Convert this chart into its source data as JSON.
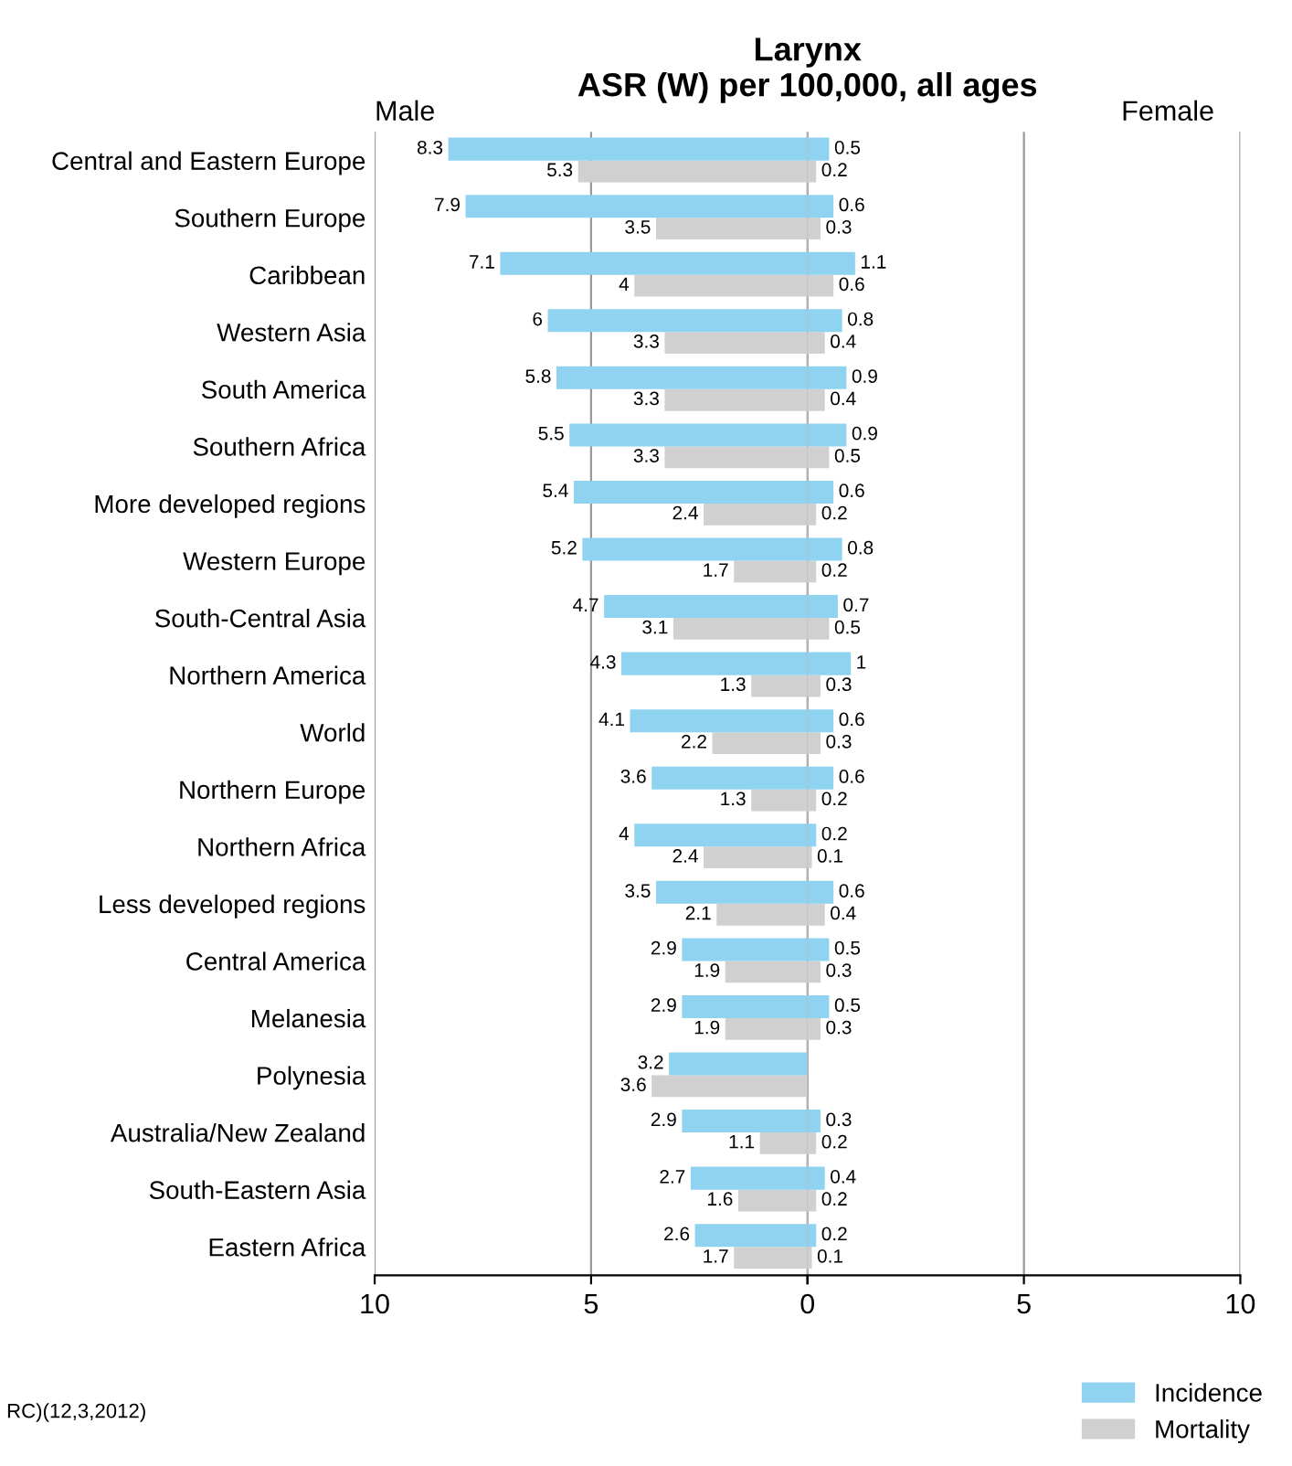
{
  "chart_data": [
    {
      "type": "bar",
      "orientation": "horizontal",
      "title": "Larynx\nASR (W) per 100,000, all ages",
      "categories": [
        "Central and Eastern Europe",
        "Southern Europe",
        "Caribbean",
        "Western Asia",
        "South America",
        "Southern Africa",
        "More developed regions",
        "Western Europe",
        "South-Central Asia",
        "Northern America",
        "World",
        "Northern Europe",
        "Northern Africa",
        "Less developed regions",
        "Central America",
        "Melanesia",
        "Polynesia",
        "Australia/New Zealand",
        "South-Eastern Asia",
        "Eastern Africa"
      ],
      "series": [
        {
          "name": "Incidence",
          "color": "#8fd3f0",
          "values": [
            8.3,
            7.9,
            7.1,
            6,
            5.8,
            5.5,
            5.4,
            5.2,
            4.7,
            4.3,
            4.1,
            3.6,
            4,
            3.5,
            2.9,
            2.9,
            3.2,
            2.9,
            2.7,
            2.6
          ]
        },
        {
          "name": "Mortality",
          "color": "#d0d0d0",
          "values": [
            5.3,
            3.5,
            4,
            3.3,
            3.3,
            3.3,
            2.4,
            1.7,
            3.1,
            1.3,
            2.2,
            1.3,
            2.4,
            2.1,
            1.9,
            1.9,
            3.6,
            1.1,
            1.6,
            1.7
          ]
        }
      ],
      "data_labels": true,
      "xlim": [
        10,
        0
      ],
      "xticks": [
        10,
        5,
        0
      ],
      "grid": "x",
      "legend": "bottom right",
      "annotations": [
        "Male",
        "RC)(12,3,2012)"
      ]
    },
    {
      "type": "bar",
      "orientation": "horizontal",
      "series": [
        {
          "color": "#8fd3f0",
          "values": [
            0.5,
            0.6,
            1.1,
            0.8,
            0.9,
            0.9,
            0.6,
            0.8,
            0.7,
            1,
            0.6,
            0.6,
            0.2,
            0.6,
            0.5,
            0.5,
            null,
            0.3,
            0.4,
            0.2
          ]
        },
        {
          "color": "#d0d0d0",
          "values": [
            0.2,
            0.3,
            0.6,
            0.4,
            0.4,
            0.5,
            0.2,
            0.2,
            0.5,
            0.3,
            0.3,
            0.2,
            0.1,
            0.4,
            0.3,
            0.3,
            null,
            0.2,
            0.2,
            0.1
          ]
        }
      ],
      "data_labels": true,
      "xlim": [
        0,
        10
      ],
      "xticks": [
        {
          "value": 0,
          "label": null
        },
        5,
        10
      ],
      "grid": "x",
      "tick_labels": "x",
      "annotations": [
        "Female"
      ]
    }
  ]
}
